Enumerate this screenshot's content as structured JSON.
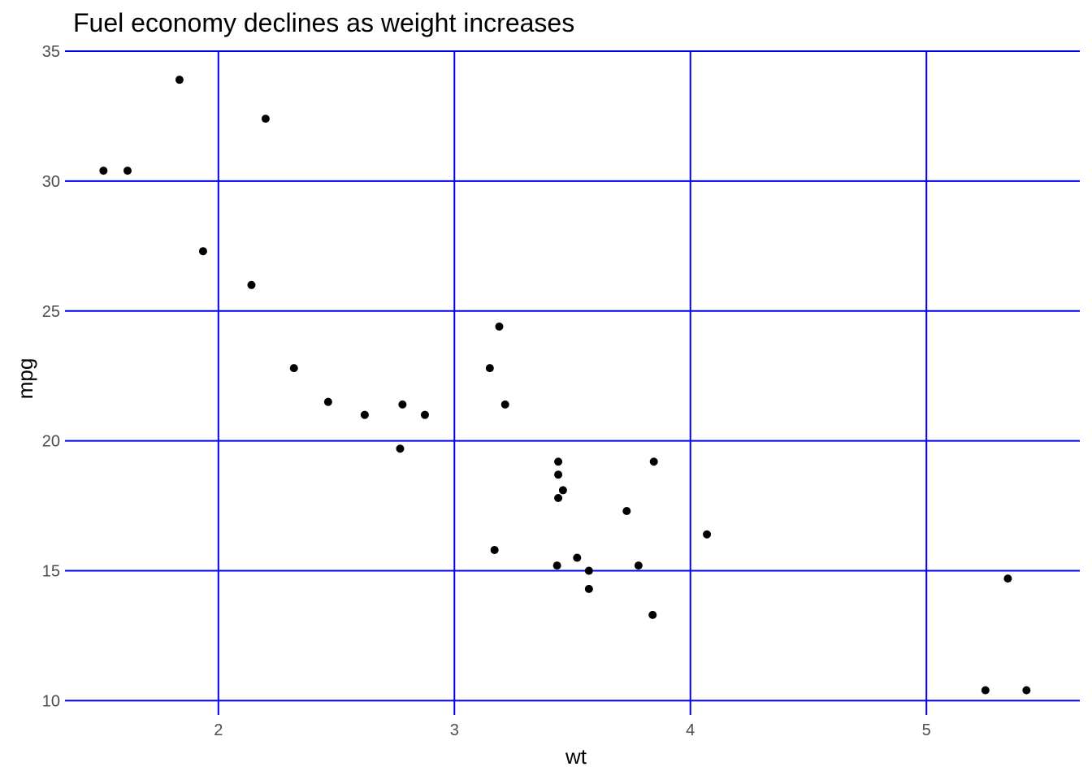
{
  "chart_data": {
    "type": "scatter",
    "title": "Fuel economy declines as weight increases",
    "xlabel": "wt",
    "ylabel": "mpg",
    "xlim": [
      1.35,
      5.65
    ],
    "ylim": [
      9.45,
      35
    ],
    "x_ticks": [
      "2",
      "3",
      "4",
      "5"
    ],
    "y_ticks": [
      "10",
      "15",
      "20",
      "25",
      "30",
      "35"
    ],
    "grid": true,
    "grid_color": "#0000ee",
    "point_color": "#000000",
    "points": [
      {
        "x": 2.62,
        "y": 21.0
      },
      {
        "x": 2.875,
        "y": 21.0
      },
      {
        "x": 2.32,
        "y": 22.8
      },
      {
        "x": 3.215,
        "y": 21.4
      },
      {
        "x": 3.44,
        "y": 18.7
      },
      {
        "x": 3.46,
        "y": 18.1
      },
      {
        "x": 3.57,
        "y": 14.3
      },
      {
        "x": 3.19,
        "y": 24.4
      },
      {
        "x": 3.15,
        "y": 22.8
      },
      {
        "x": 3.44,
        "y": 19.2
      },
      {
        "x": 3.44,
        "y": 17.8
      },
      {
        "x": 4.07,
        "y": 16.4
      },
      {
        "x": 3.73,
        "y": 17.3
      },
      {
        "x": 3.78,
        "y": 15.2
      },
      {
        "x": 5.25,
        "y": 10.4
      },
      {
        "x": 5.424,
        "y": 10.4
      },
      {
        "x": 5.345,
        "y": 14.7
      },
      {
        "x": 2.2,
        "y": 32.4
      },
      {
        "x": 1.615,
        "y": 30.4
      },
      {
        "x": 1.835,
        "y": 33.9
      },
      {
        "x": 2.465,
        "y": 21.5
      },
      {
        "x": 3.52,
        "y": 15.5
      },
      {
        "x": 3.435,
        "y": 15.2
      },
      {
        "x": 3.84,
        "y": 13.3
      },
      {
        "x": 3.845,
        "y": 19.2
      },
      {
        "x": 1.935,
        "y": 27.3
      },
      {
        "x": 2.14,
        "y": 26.0
      },
      {
        "x": 1.513,
        "y": 30.4
      },
      {
        "x": 3.17,
        "y": 15.8
      },
      {
        "x": 2.77,
        "y": 19.7
      },
      {
        "x": 3.57,
        "y": 15.0
      },
      {
        "x": 2.78,
        "y": 21.4
      }
    ]
  }
}
